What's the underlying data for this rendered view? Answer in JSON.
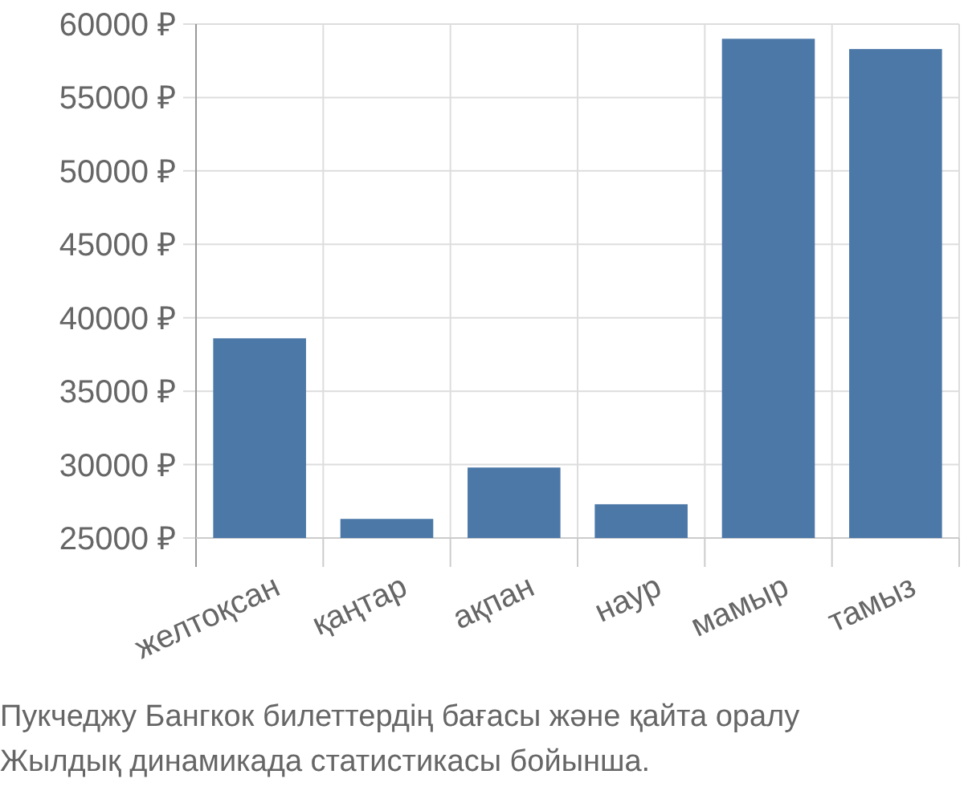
{
  "chart_data": {
    "type": "bar",
    "categories": [
      "желтоқсан",
      "қаңтар",
      "ақпан",
      "наур",
      "мамыр",
      "тамыз"
    ],
    "values": [
      38600,
      26300,
      29800,
      27300,
      59000,
      58300
    ],
    "color": "#4c78a8",
    "ylim": [
      25000,
      60000
    ],
    "yticks": [
      {
        "value": 25000,
        "label": "25000 ₽"
      },
      {
        "value": 30000,
        "label": "30000 ₽"
      },
      {
        "value": 35000,
        "label": "35000 ₽"
      },
      {
        "value": 40000,
        "label": "40000 ₽"
      },
      {
        "value": 45000,
        "label": "45000 ₽"
      },
      {
        "value": 50000,
        "label": "50000 ₽"
      },
      {
        "value": 55000,
        "label": "55000 ₽"
      },
      {
        "value": 60000,
        "label": "60000 ₽"
      }
    ],
    "grid": true,
    "annotations": [
      "Пукчеджу Бангкок билеттердің бағасы және қайта оралу",
      "Жылдық динамикада статистикасы бойынша."
    ]
  }
}
